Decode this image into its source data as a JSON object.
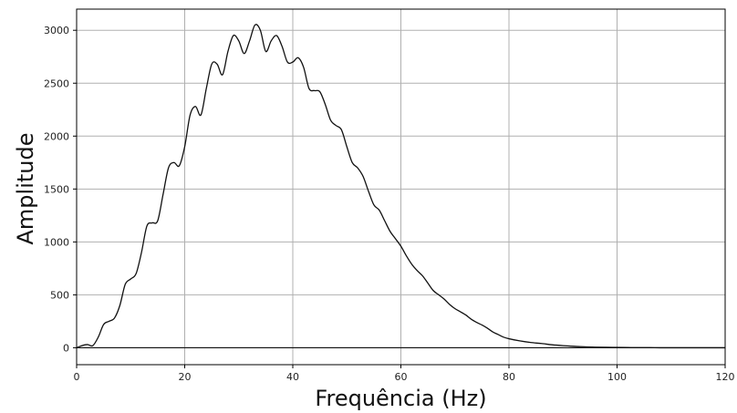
{
  "chart_data": {
    "type": "line",
    "title": "",
    "xlabel": "Frequência (Hz)",
    "ylabel": "Amplitude",
    "xlim": [
      0,
      120
    ],
    "ylim": [
      -160,
      3200
    ],
    "grid": true,
    "x_ticks": [
      0,
      20,
      40,
      60,
      80,
      100,
      120
    ],
    "y_ticks": [
      0,
      500,
      1000,
      1500,
      2000,
      2500,
      3000
    ],
    "x_tick_labels": [
      "0",
      "20",
      "40",
      "60",
      "80",
      "100",
      "120"
    ],
    "y_tick_labels": [
      "0",
      "500",
      "1000",
      "1500",
      "2000",
      "2500",
      "3000"
    ],
    "line_color": "#111111",
    "grid_color": "#b0b0b0",
    "series": [
      {
        "x": [
          0,
          1,
          2,
          3,
          4,
          5,
          6,
          7,
          8,
          9,
          10,
          11,
          12,
          13,
          14,
          15,
          16,
          17,
          18,
          19,
          20,
          21,
          22,
          23,
          24,
          25,
          26,
          27,
          28,
          29,
          30,
          31,
          32,
          33,
          34,
          35,
          36,
          37,
          38,
          39,
          40,
          41,
          42,
          43,
          44,
          45,
          46,
          47,
          48,
          49,
          50,
          51,
          52,
          53,
          54,
          55,
          56,
          57,
          58,
          59,
          60,
          61,
          62,
          63,
          64,
          65,
          66,
          67,
          68,
          69,
          70,
          71,
          72,
          73,
          74,
          75,
          76,
          77,
          78,
          79,
          80,
          82,
          84,
          86,
          88,
          90,
          92,
          94,
          96,
          98,
          100,
          102,
          104,
          106,
          108,
          110,
          113,
          116,
          120
        ],
        "y": [
          0,
          20,
          30,
          20,
          100,
          220,
          250,
          280,
          400,
          600,
          650,
          700,
          900,
          1150,
          1180,
          1200,
          1450,
          1700,
          1750,
          1720,
          1900,
          2200,
          2280,
          2200,
          2450,
          2680,
          2680,
          2580,
          2800,
          2950,
          2900,
          2780,
          2900,
          3050,
          3000,
          2800,
          2900,
          2950,
          2850,
          2700,
          2700,
          2740,
          2650,
          2450,
          2430,
          2420,
          2300,
          2150,
          2100,
          2060,
          1900,
          1750,
          1700,
          1620,
          1480,
          1350,
          1300,
          1200,
          1100,
          1030,
          960,
          870,
          790,
          730,
          680,
          610,
          540,
          500,
          460,
          410,
          370,
          340,
          310,
          270,
          240,
          215,
          185,
          150,
          125,
          100,
          85,
          65,
          50,
          40,
          28,
          20,
          14,
          9,
          6,
          4,
          3,
          2,
          1,
          1,
          0,
          0,
          0,
          0,
          0
        ]
      }
    ],
    "baseline_y": 0
  }
}
